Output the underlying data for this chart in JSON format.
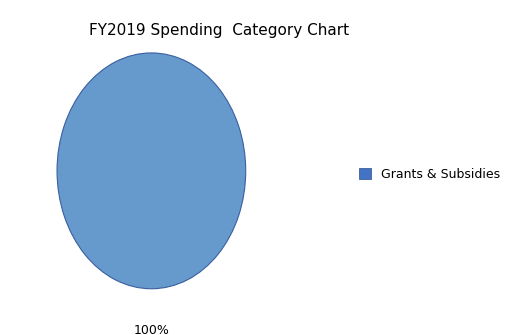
{
  "title": "FY2019 Spending  Category Chart",
  "labels": [
    "Grants & Subsidies"
  ],
  "values": [
    100
  ],
  "colors": [
    "#6699CC"
  ],
  "pct_label": "100%",
  "legend_label": "Grants & Subsidies",
  "legend_color": "#4472C4",
  "background_color": "#FFFFFF",
  "title_fontsize": 11,
  "label_fontsize": 9,
  "legend_fontsize": 9
}
